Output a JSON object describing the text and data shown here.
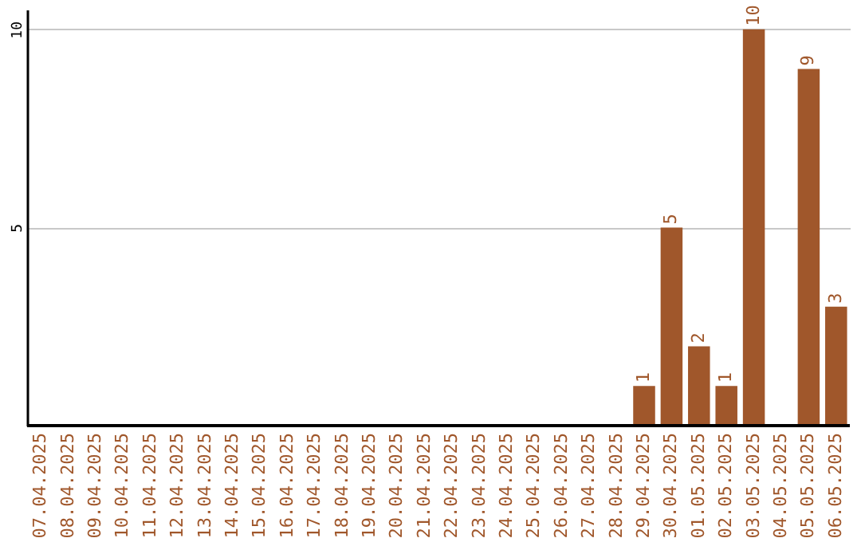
{
  "chart_data": {
    "type": "bar",
    "categories": [
      "07.04.2025",
      "08.04.2025",
      "09.04.2025",
      "10.04.2025",
      "11.04.2025",
      "12.04.2025",
      "13.04.2025",
      "14.04.2025",
      "15.04.2025",
      "16.04.2025",
      "17.04.2025",
      "18.04.2025",
      "19.04.2025",
      "20.04.2025",
      "21.04.2025",
      "22.04.2025",
      "23.04.2025",
      "24.04.2025",
      "25.04.2025",
      "26.04.2025",
      "27.04.2025",
      "28.04.2025",
      "29.04.2025",
      "30.04.2025",
      "01.05.2025",
      "02.05.2025",
      "03.05.2025",
      "04.05.2025",
      "05.05.2025",
      "06.05.2025"
    ],
    "values": [
      0,
      0,
      0,
      0,
      0,
      0,
      0,
      0,
      0,
      0,
      0,
      0,
      0,
      0,
      0,
      0,
      0,
      0,
      0,
      0,
      0,
      0,
      1,
      5,
      2,
      1,
      10,
      0,
      9,
      3
    ],
    "value_labels": [
      null,
      null,
      null,
      null,
      null,
      null,
      null,
      null,
      null,
      null,
      null,
      null,
      null,
      null,
      null,
      null,
      null,
      null,
      null,
      null,
      null,
      null,
      "1",
      "5",
      "2",
      "1",
      "10",
      null,
      "9",
      "3"
    ],
    "color": "#a0572b",
    "ylim": [
      0,
      10.5
    ],
    "yticks": [
      5,
      10
    ],
    "grid": "y"
  }
}
